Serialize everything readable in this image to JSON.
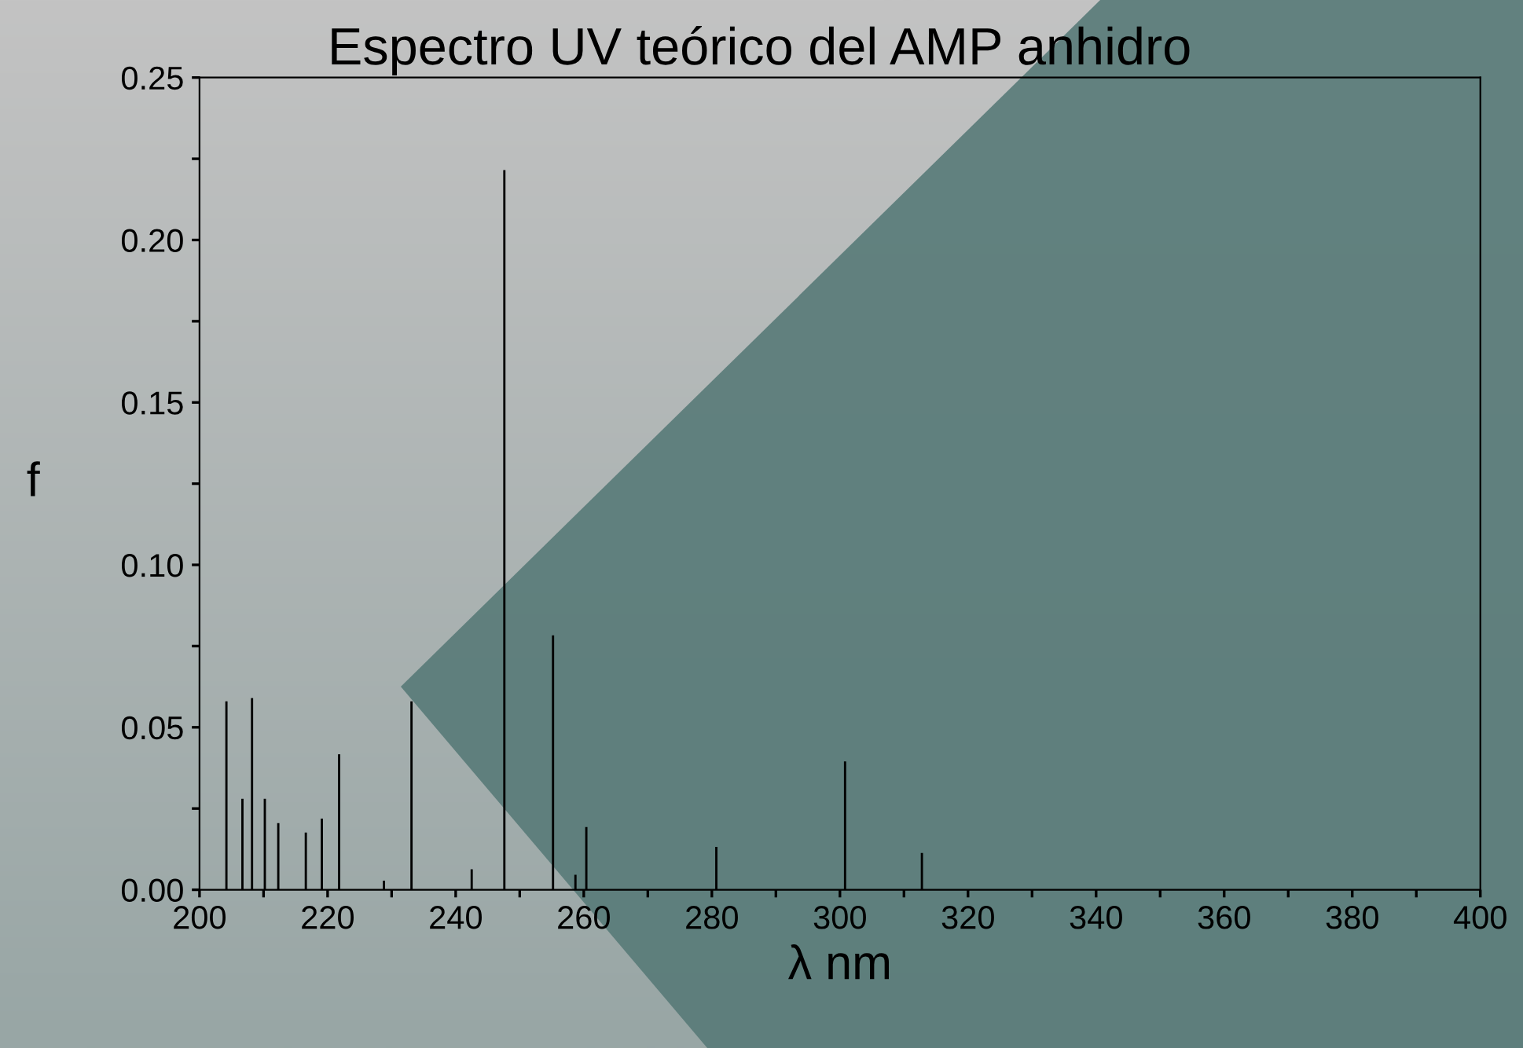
{
  "chart_data": {
    "type": "bar",
    "title": "Espectro UV teórico del AMP anhidro",
    "xlabel": "λ nm",
    "ylabel": "f",
    "x": [
      204.2,
      206.7,
      208.2,
      210.2,
      212.3,
      216.6,
      219.1,
      221.8,
      228.8,
      233.1,
      242.5,
      247.6,
      255.2,
      258.7,
      260.4,
      280.7,
      300.8,
      312.8
    ],
    "values": [
      0.058,
      0.028,
      0.059,
      0.028,
      0.0205,
      0.0176,
      0.0219,
      0.0417,
      0.0028,
      0.058,
      0.0063,
      0.2215,
      0.0783,
      0.0046,
      0.0193,
      0.0132,
      0.0395,
      0.0113
    ],
    "color": "#000000",
    "xlim": [
      200,
      400
    ],
    "xticks": [
      200,
      {
        "value": 210,
        "label": null
      },
      220,
      {
        "value": 230,
        "label": null
      },
      240,
      {
        "value": 250,
        "label": null
      },
      260,
      {
        "value": 270,
        "label": null
      },
      280,
      {
        "value": 290,
        "label": null
      },
      300,
      {
        "value": 310,
        "label": null
      },
      320,
      {
        "value": 330,
        "label": null
      },
      340,
      {
        "value": 350,
        "label": null
      },
      360,
      {
        "value": 370,
        "label": null
      },
      380,
      {
        "value": 390,
        "label": null
      },
      400
    ],
    "ylim": [
      0,
      0.25
    ],
    "yticks": [
      {
        "value": 0,
        "label": "0.00"
      },
      {
        "value": 0.025,
        "label": null
      },
      {
        "value": 0.05,
        "label": "0.05"
      },
      {
        "value": 0.075,
        "label": null
      },
      {
        "value": 0.1,
        "label": "0.10"
      },
      {
        "value": 0.125,
        "label": null
      },
      {
        "value": 0.15,
        "label": "0.15"
      },
      {
        "value": 0.175,
        "label": null
      },
      {
        "value": 0.2,
        "label": "0.20"
      },
      {
        "value": 0.225,
        "label": null
      },
      {
        "value": 0.25,
        "label": "0.25"
      }
    ],
    "grid": false,
    "legend": false
  }
}
